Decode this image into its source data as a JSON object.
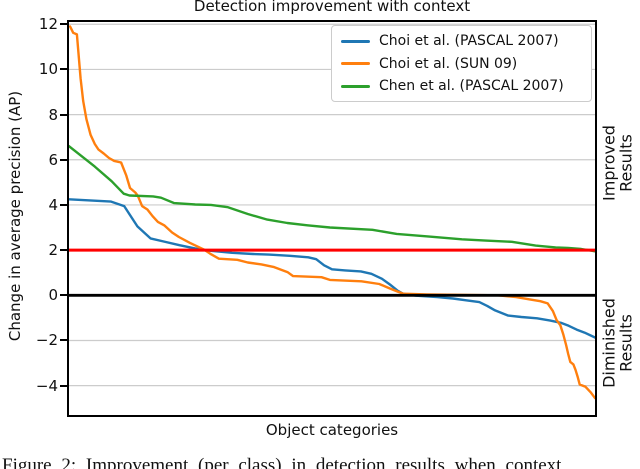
{
  "figure": {
    "title": "Detection improvement with context",
    "xlabel": "Object categories",
    "ylabel": "Change in average precision (AP)",
    "right_label_improved": "Improved\nResults",
    "right_label_diminished": "Diminished\nResults",
    "caption": "Figure 2: Improvement (per class) in detection results when context"
  },
  "colors": {
    "blue": "#1f77b4",
    "orange": "#ff7f0e",
    "green": "#2ca02c",
    "red_line": "#ff0000",
    "zero_line": "#000000",
    "grid": "#cccccc",
    "spine": "#000000"
  },
  "chart_data": {
    "type": "line",
    "title": "Detection improvement with context",
    "xlabel": "Object categories",
    "ylabel": "Change in average precision (AP)",
    "x_axis_note": "object categories sorted by improvement; no x tick labels shown",
    "ylim": [
      -5.3,
      12.1
    ],
    "yticks": [
      {
        "value": 12,
        "label": "12"
      },
      {
        "value": 10,
        "label": "10"
      },
      {
        "value": 8,
        "label": "8"
      },
      {
        "value": 6,
        "label": "6"
      },
      {
        "value": 4,
        "label": "4"
      },
      {
        "value": 2,
        "label": "2"
      },
      {
        "value": 0,
        "label": "0"
      },
      {
        "value": -2,
        "label": "−2"
      },
      {
        "value": -4,
        "label": "−4"
      }
    ],
    "grid": "horizontal",
    "legend_position": "upper right",
    "reference_lines": [
      {
        "y": 2,
        "color": "#ff0000",
        "width": 3
      },
      {
        "y": 0,
        "color": "#000000",
        "width": 2.8
      }
    ],
    "series": [
      {
        "name": "Choi et al. (PASCAL 2007)",
        "color": "#1f77b4",
        "points": [
          [
            0,
            4.25
          ],
          [
            4,
            4.2
          ],
          [
            8,
            4.15
          ],
          [
            10.5,
            3.95
          ],
          [
            13,
            3.05
          ],
          [
            15.5,
            2.52
          ],
          [
            18,
            2.38
          ],
          [
            21,
            2.22
          ],
          [
            23.5,
            2.1
          ],
          [
            25.5,
            2.0
          ],
          [
            28,
            1.95
          ],
          [
            31,
            1.88
          ],
          [
            35,
            1.83
          ],
          [
            38,
            1.8
          ],
          [
            42,
            1.75
          ],
          [
            45.5,
            1.68
          ],
          [
            47,
            1.6
          ],
          [
            48.5,
            1.33
          ],
          [
            50,
            1.15
          ],
          [
            52.5,
            1.1
          ],
          [
            55.5,
            1.06
          ],
          [
            57.5,
            0.95
          ],
          [
            59.5,
            0.73
          ],
          [
            61,
            0.48
          ],
          [
            62.5,
            0.2
          ],
          [
            63.5,
            0.07
          ],
          [
            66,
            -0.02
          ],
          [
            70,
            -0.08
          ],
          [
            73,
            -0.14
          ],
          [
            75.5,
            -0.22
          ],
          [
            78,
            -0.3
          ],
          [
            79.5,
            -0.47
          ],
          [
            81,
            -0.67
          ],
          [
            83.5,
            -0.9
          ],
          [
            86,
            -0.96
          ],
          [
            89,
            -1.02
          ],
          [
            91.5,
            -1.12
          ],
          [
            93.5,
            -1.22
          ],
          [
            95,
            -1.35
          ],
          [
            96.5,
            -1.52
          ],
          [
            98,
            -1.65
          ],
          [
            100,
            -1.87
          ]
        ]
      },
      {
        "name": "Choi et al. (SUN 09)",
        "color": "#ff7f0e",
        "points": [
          [
            0.2,
            11.9
          ],
          [
            0.8,
            11.62
          ],
          [
            1.5,
            11.55
          ],
          [
            2.2,
            9.6
          ],
          [
            2.7,
            8.6
          ],
          [
            3.3,
            7.8
          ],
          [
            4.1,
            7.1
          ],
          [
            4.9,
            6.7
          ],
          [
            5.6,
            6.45
          ],
          [
            6.6,
            6.28
          ],
          [
            7.6,
            6.08
          ],
          [
            8.6,
            5.95
          ],
          [
            9.9,
            5.88
          ],
          [
            10.9,
            5.3
          ],
          [
            11.6,
            4.75
          ],
          [
            12.6,
            4.55
          ],
          [
            13.1,
            4.4
          ],
          [
            13.9,
            3.95
          ],
          [
            14.9,
            3.8
          ],
          [
            15.9,
            3.5
          ],
          [
            16.9,
            3.25
          ],
          [
            18.1,
            3.1
          ],
          [
            19.6,
            2.78
          ],
          [
            20.9,
            2.58
          ],
          [
            23,
            2.32
          ],
          [
            25.6,
            2.03
          ],
          [
            27,
            1.82
          ],
          [
            28.5,
            1.62
          ],
          [
            32,
            1.57
          ],
          [
            34,
            1.45
          ],
          [
            36.6,
            1.37
          ],
          [
            39,
            1.25
          ],
          [
            41.6,
            1.02
          ],
          [
            42.6,
            0.85
          ],
          [
            48,
            0.8
          ],
          [
            49.6,
            0.68
          ],
          [
            55.6,
            0.62
          ],
          [
            59,
            0.5
          ],
          [
            61,
            0.3
          ],
          [
            62.6,
            0.15
          ],
          [
            63.6,
            0.07
          ],
          [
            68,
            0.04
          ],
          [
            74,
            0.02
          ],
          [
            81.6,
            0.0
          ],
          [
            85,
            -0.08
          ],
          [
            87.6,
            -0.18
          ],
          [
            89.6,
            -0.26
          ],
          [
            91,
            -0.36
          ],
          [
            92,
            -0.7
          ],
          [
            92.7,
            -1.1
          ],
          [
            93.4,
            -1.32
          ],
          [
            94,
            -1.75
          ],
          [
            94.5,
            -2.2
          ],
          [
            94.9,
            -2.6
          ],
          [
            95.3,
            -2.95
          ],
          [
            95.9,
            -3.06
          ],
          [
            96.3,
            -3.3
          ],
          [
            96.7,
            -3.6
          ],
          [
            97.1,
            -3.95
          ],
          [
            98.2,
            -4.05
          ],
          [
            99.2,
            -4.3
          ],
          [
            100,
            -4.55
          ]
        ]
      },
      {
        "name": "Chen et al. (PASCAL 2007)",
        "color": "#2ca02c",
        "points": [
          [
            0,
            6.6
          ],
          [
            4.9,
            5.7
          ],
          [
            8.1,
            5.05
          ],
          [
            10.4,
            4.5
          ],
          [
            11.5,
            4.42
          ],
          [
            16,
            4.38
          ],
          [
            17.5,
            4.32
          ],
          [
            20,
            4.08
          ],
          [
            24,
            4.02
          ],
          [
            27,
            4.0
          ],
          [
            30.2,
            3.9
          ],
          [
            34,
            3.6
          ],
          [
            37.7,
            3.35
          ],
          [
            41.5,
            3.2
          ],
          [
            45.3,
            3.1
          ],
          [
            49.6,
            3.0
          ],
          [
            57.7,
            2.9
          ],
          [
            62.3,
            2.72
          ],
          [
            68.5,
            2.6
          ],
          [
            74.7,
            2.48
          ],
          [
            79.2,
            2.42
          ],
          [
            84.2,
            2.37
          ],
          [
            88.7,
            2.2
          ],
          [
            92.5,
            2.12
          ],
          [
            94.9,
            2.1
          ],
          [
            97.4,
            2.05
          ],
          [
            99.2,
            1.98
          ],
          [
            100,
            1.95
          ]
        ]
      }
    ]
  }
}
